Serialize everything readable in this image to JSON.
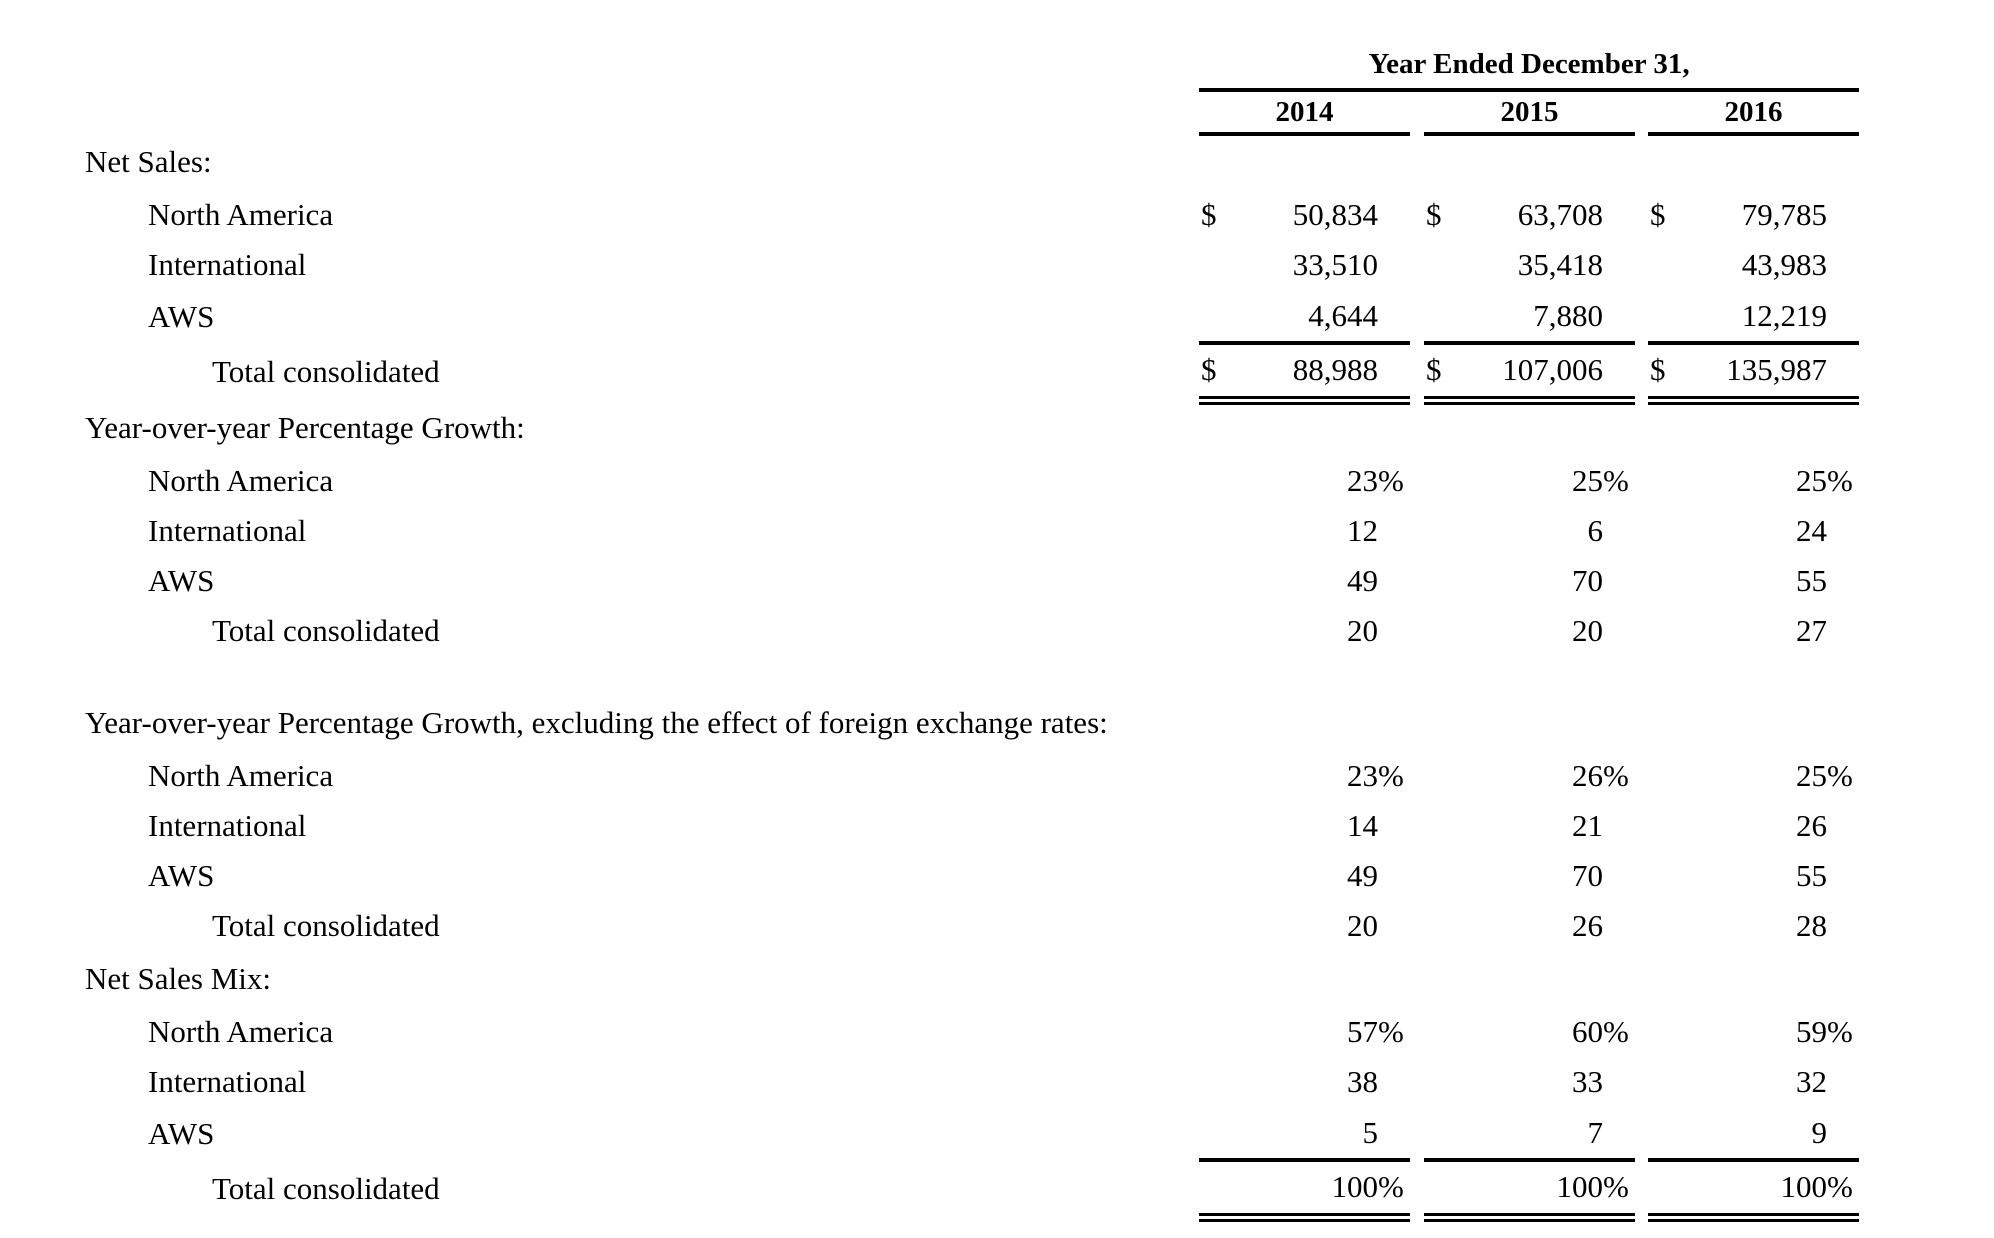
{
  "symbols": {
    "dollar": "$",
    "percent": "%"
  },
  "table": {
    "header": {
      "title": "Year Ended December 31,",
      "years": [
        "2014",
        "2015",
        "2016"
      ]
    },
    "sections": [
      {
        "label": "Net Sales:",
        "rows": [
          {
            "label": "North America",
            "values": [
              "50,834",
              "63,708",
              "79,785"
            ]
          },
          {
            "label": "International",
            "values": [
              "33,510",
              "35,418",
              "43,983"
            ]
          },
          {
            "label": "AWS",
            "values": [
              "4,644",
              "7,880",
              "12,219"
            ]
          },
          {
            "label": "Total consolidated",
            "values": [
              "88,988",
              "107,006",
              "135,987"
            ]
          }
        ]
      },
      {
        "label": "Year-over-year Percentage Growth:",
        "rows": [
          {
            "label": "North America",
            "values": [
              "23",
              "25",
              "25"
            ]
          },
          {
            "label": "International",
            "values": [
              "12",
              "6",
              "24"
            ]
          },
          {
            "label": "AWS",
            "values": [
              "49",
              "70",
              "55"
            ]
          },
          {
            "label": "Total consolidated",
            "values": [
              "20",
              "20",
              "27"
            ]
          }
        ]
      },
      {
        "label": "Year-over-year Percentage Growth, excluding the effect of foreign exchange rates:",
        "rows": [
          {
            "label": "North America",
            "values": [
              "23",
              "26",
              "25"
            ]
          },
          {
            "label": "International",
            "values": [
              "14",
              "21",
              "26"
            ]
          },
          {
            "label": "AWS",
            "values": [
              "49",
              "70",
              "55"
            ]
          },
          {
            "label": "Total consolidated",
            "values": [
              "20",
              "26",
              "28"
            ]
          }
        ]
      },
      {
        "label": "Net Sales Mix:",
        "rows": [
          {
            "label": "North America",
            "values": [
              "57",
              "60",
              "59"
            ]
          },
          {
            "label": "International",
            "values": [
              "38",
              "33",
              "32"
            ]
          },
          {
            "label": "AWS",
            "values": [
              "5",
              "7",
              "9"
            ]
          },
          {
            "label": "Total consolidated",
            "values": [
              "100",
              "100",
              "100"
            ]
          }
        ]
      }
    ]
  }
}
